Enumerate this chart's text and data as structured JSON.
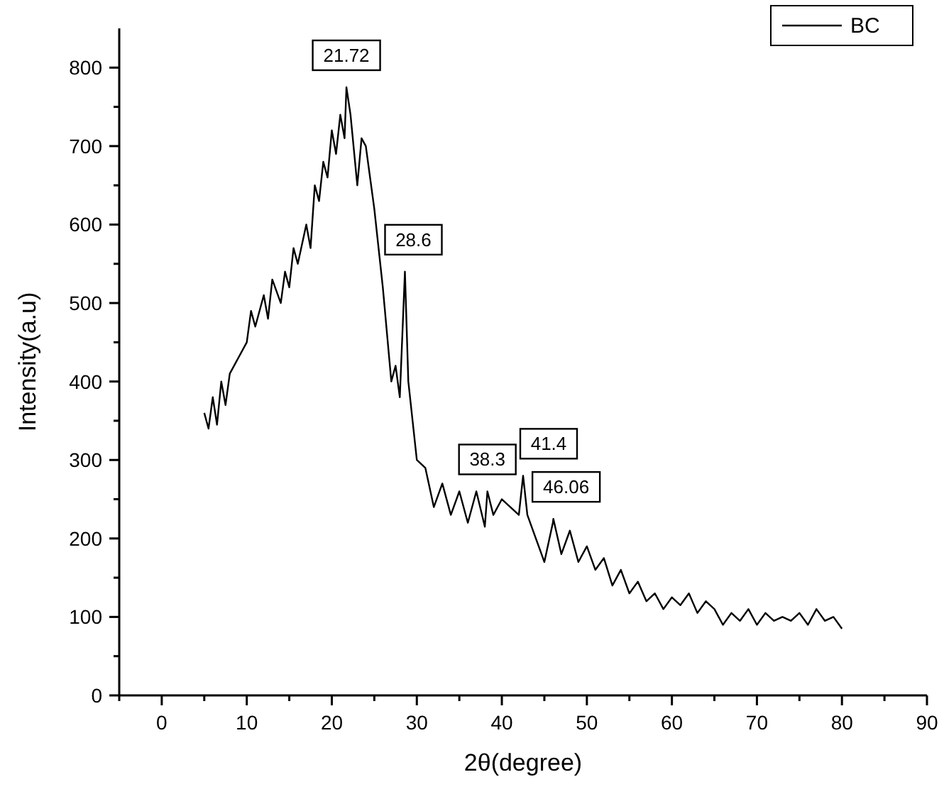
{
  "chart_data": {
    "type": "line",
    "xlabel": "2θ(degree)",
    "ylabel": "Intensity(a.u)",
    "xlim": [
      -5,
      90
    ],
    "ylim": [
      0,
      850
    ],
    "xticks": [
      {
        "value": -5,
        "label": null
      },
      0,
      {
        "value": 5,
        "label": null
      },
      10,
      {
        "value": 15,
        "label": null
      },
      20,
      {
        "value": 25,
        "label": null
      },
      30,
      {
        "value": 35,
        "label": null
      },
      40,
      {
        "value": 45,
        "label": null
      },
      50,
      {
        "value": 55,
        "label": null
      },
      60,
      {
        "value": 65,
        "label": null
      },
      70,
      {
        "value": 75,
        "label": null
      },
      80,
      {
        "value": 85,
        "label": null
      },
      90
    ],
    "yticks": [
      0,
      {
        "value": 50,
        "label": null
      },
      100,
      {
        "value": 150,
        "label": null
      },
      200,
      {
        "value": 250,
        "label": null
      },
      300,
      {
        "value": 350,
        "label": null
      },
      400,
      {
        "value": 450,
        "label": null
      },
      500,
      {
        "value": 550,
        "label": null
      },
      600,
      {
        "value": 650,
        "label": null
      },
      700,
      {
        "value": 750,
        "label": null
      },
      800
    ],
    "grid": false,
    "legend": "top right",
    "marker": "none",
    "line_style": "solid",
    "series": [
      {
        "name": "BC",
        "color": "#000000",
        "x": [
          5,
          5.5,
          6,
          6.5,
          7,
          7.5,
          8,
          9,
          10,
          10.5,
          11,
          12,
          12.5,
          13,
          14,
          14.5,
          15,
          15.5,
          16,
          17,
          17.5,
          18,
          18.5,
          19,
          19.5,
          20,
          20.5,
          21,
          21.5,
          21.72,
          22.2,
          23,
          23.5,
          24,
          25,
          26,
          27,
          27.5,
          28,
          28.6,
          29,
          30,
          31,
          32,
          33,
          34,
          35,
          36,
          37,
          38,
          38.3,
          39,
          40,
          41,
          42,
          42.5,
          43,
          44,
          45,
          46,
          46.06,
          47,
          48,
          49,
          50,
          51,
          52,
          53,
          54,
          55,
          56,
          57,
          58,
          59,
          60,
          61,
          62,
          63,
          64,
          65,
          66,
          67,
          68,
          69,
          70,
          71,
          72,
          73,
          74,
          75,
          76,
          77,
          78,
          79,
          80
        ],
        "values": [
          360,
          340,
          380,
          345,
          400,
          370,
          410,
          430,
          450,
          490,
          470,
          510,
          480,
          530,
          500,
          540,
          520,
          570,
          550,
          600,
          570,
          650,
          630,
          680,
          660,
          720,
          690,
          740,
          710,
          775,
          740,
          650,
          710,
          700,
          620,
          520,
          400,
          420,
          380,
          540,
          400,
          300,
          290,
          240,
          270,
          230,
          260,
          220,
          260,
          215,
          260,
          230,
          250,
          240,
          230,
          280,
          230,
          200,
          170,
          220,
          225,
          180,
          210,
          170,
          190,
          160,
          175,
          140,
          160,
          130,
          145,
          120,
          130,
          110,
          125,
          115,
          130,
          105,
          120,
          110,
          90,
          105,
          95,
          110,
          90,
          105,
          95,
          100,
          95,
          105,
          90,
          110,
          95,
          100,
          85
        ]
      }
    ],
    "annotations": [
      {
        "text": "21.72",
        "x": 21.72,
        "y": 775
      },
      {
        "text": "28.6",
        "x": 28.6,
        "y": 540
      },
      {
        "text": "38.3",
        "x": 38.3,
        "y": 260
      },
      {
        "text": "41.4",
        "x": 42.5,
        "y": 280
      },
      {
        "text": "46.06",
        "x": 46.06,
        "y": 225
      }
    ]
  }
}
